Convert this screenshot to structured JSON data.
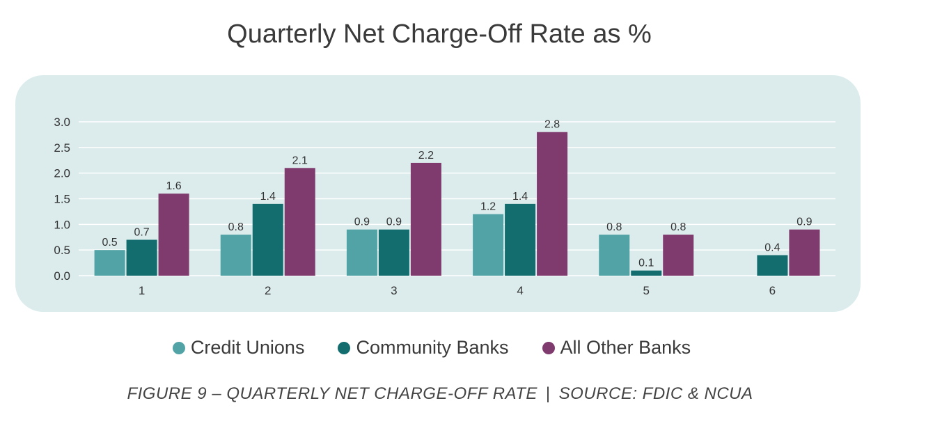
{
  "chart_data": {
    "type": "bar",
    "title": "Quarterly Net Charge-Off Rate as %",
    "categories": [
      "1",
      "2",
      "3",
      "4",
      "5",
      "6"
    ],
    "series": [
      {
        "name": "Credit Unions",
        "color": "#52a3a6",
        "values": [
          0.5,
          0.8,
          0.9,
          1.2,
          0.8,
          null
        ]
      },
      {
        "name": "Community Banks",
        "color": "#136d6f",
        "values": [
          0.7,
          1.4,
          0.9,
          1.4,
          0.1,
          0.4
        ]
      },
      {
        "name": "All Other Banks",
        "color": "#7f3a6e",
        "values": [
          1.6,
          2.1,
          2.2,
          2.8,
          0.8,
          0.9
        ]
      }
    ],
    "ylim": [
      0,
      3.0
    ],
    "yticks": [
      "0.0",
      "0.5",
      "1.0",
      "1.5",
      "2.0",
      "2.5",
      "3.0"
    ],
    "grid": true,
    "legend_position": "bottom"
  },
  "caption": {
    "left": "FIGURE 9 – QUARTERLY NET CHARGE-OFF RATE",
    "separator": "|",
    "right": "SOURCE: FDIC & NCUA"
  }
}
